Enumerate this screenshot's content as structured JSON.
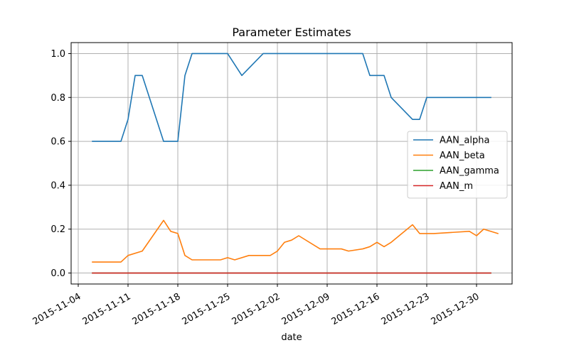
{
  "chart_data": {
    "type": "line",
    "title": "Parameter Estimates",
    "xlabel": "date",
    "ylabel": "",
    "x_axis_type": "date",
    "xlim": [
      "2015-11-03",
      "2016-01-04"
    ],
    "ylim": [
      -0.05,
      1.05
    ],
    "x_ticks": [
      "2015-11-04",
      "2015-11-11",
      "2015-11-18",
      "2015-11-25",
      "2015-12-02",
      "2015-12-09",
      "2015-12-16",
      "2015-12-23",
      "2015-12-30"
    ],
    "y_ticks": [
      "0.0",
      "0.2",
      "0.4",
      "0.6",
      "0.8",
      "1.0"
    ],
    "grid": true,
    "legend_position": "center-right",
    "series": [
      {
        "name": "AAN_alpha",
        "color": "#1f77b4",
        "points": [
          [
            "2015-11-06",
            0.6
          ],
          [
            "2015-11-10",
            0.6
          ],
          [
            "2015-11-11",
            0.7
          ],
          [
            "2015-11-12",
            0.9
          ],
          [
            "2015-11-13",
            0.9
          ],
          [
            "2015-11-16",
            0.6
          ],
          [
            "2015-11-18",
            0.6
          ],
          [
            "2015-11-19",
            0.9
          ],
          [
            "2015-11-20",
            1.0
          ],
          [
            "2015-11-25",
            1.0
          ],
          [
            "2015-11-27",
            0.9
          ],
          [
            "2015-11-30",
            1.0
          ],
          [
            "2015-12-14",
            1.0
          ],
          [
            "2015-12-15",
            0.9
          ],
          [
            "2015-12-17",
            0.9
          ],
          [
            "2015-12-18",
            0.8
          ],
          [
            "2015-12-21",
            0.7
          ],
          [
            "2015-12-22",
            0.7
          ],
          [
            "2015-12-23",
            0.8
          ],
          [
            "2016-01-01",
            0.8
          ]
        ]
      },
      {
        "name": "AAN_beta",
        "color": "#ff7f0e",
        "points": [
          [
            "2015-11-06",
            0.05
          ],
          [
            "2015-11-10",
            0.05
          ],
          [
            "2015-11-11",
            0.08
          ],
          [
            "2015-11-13",
            0.1
          ],
          [
            "2015-11-16",
            0.24
          ],
          [
            "2015-11-17",
            0.19
          ],
          [
            "2015-11-18",
            0.18
          ],
          [
            "2015-11-19",
            0.08
          ],
          [
            "2015-11-20",
            0.06
          ],
          [
            "2015-11-24",
            0.06
          ],
          [
            "2015-11-25",
            0.07
          ],
          [
            "2015-11-26",
            0.06
          ],
          [
            "2015-11-28",
            0.08
          ],
          [
            "2015-12-01",
            0.08
          ],
          [
            "2015-12-02",
            0.1
          ],
          [
            "2015-12-03",
            0.14
          ],
          [
            "2015-12-04",
            0.15
          ],
          [
            "2015-12-05",
            0.17
          ],
          [
            "2015-12-08",
            0.11
          ],
          [
            "2015-12-11",
            0.11
          ],
          [
            "2015-12-12",
            0.1
          ],
          [
            "2015-12-14",
            0.11
          ],
          [
            "2015-12-15",
            0.12
          ],
          [
            "2015-12-16",
            0.14
          ],
          [
            "2015-12-17",
            0.12
          ],
          [
            "2015-12-18",
            0.14
          ],
          [
            "2015-12-21",
            0.22
          ],
          [
            "2015-12-22",
            0.18
          ],
          [
            "2015-12-24",
            0.18
          ],
          [
            "2015-12-29",
            0.19
          ],
          [
            "2015-12-30",
            0.17
          ],
          [
            "2015-12-31",
            0.2
          ],
          [
            "2016-01-02",
            0.18
          ]
        ]
      },
      {
        "name": "AAN_gamma",
        "color": "#2ca02c",
        "points": [
          [
            "2015-11-06",
            0.0
          ],
          [
            "2016-01-01",
            0.0
          ]
        ]
      },
      {
        "name": "AAN_m",
        "color": "#d62728",
        "points": [
          [
            "2015-11-06",
            0.0
          ],
          [
            "2016-01-01",
            0.0
          ]
        ]
      }
    ]
  }
}
